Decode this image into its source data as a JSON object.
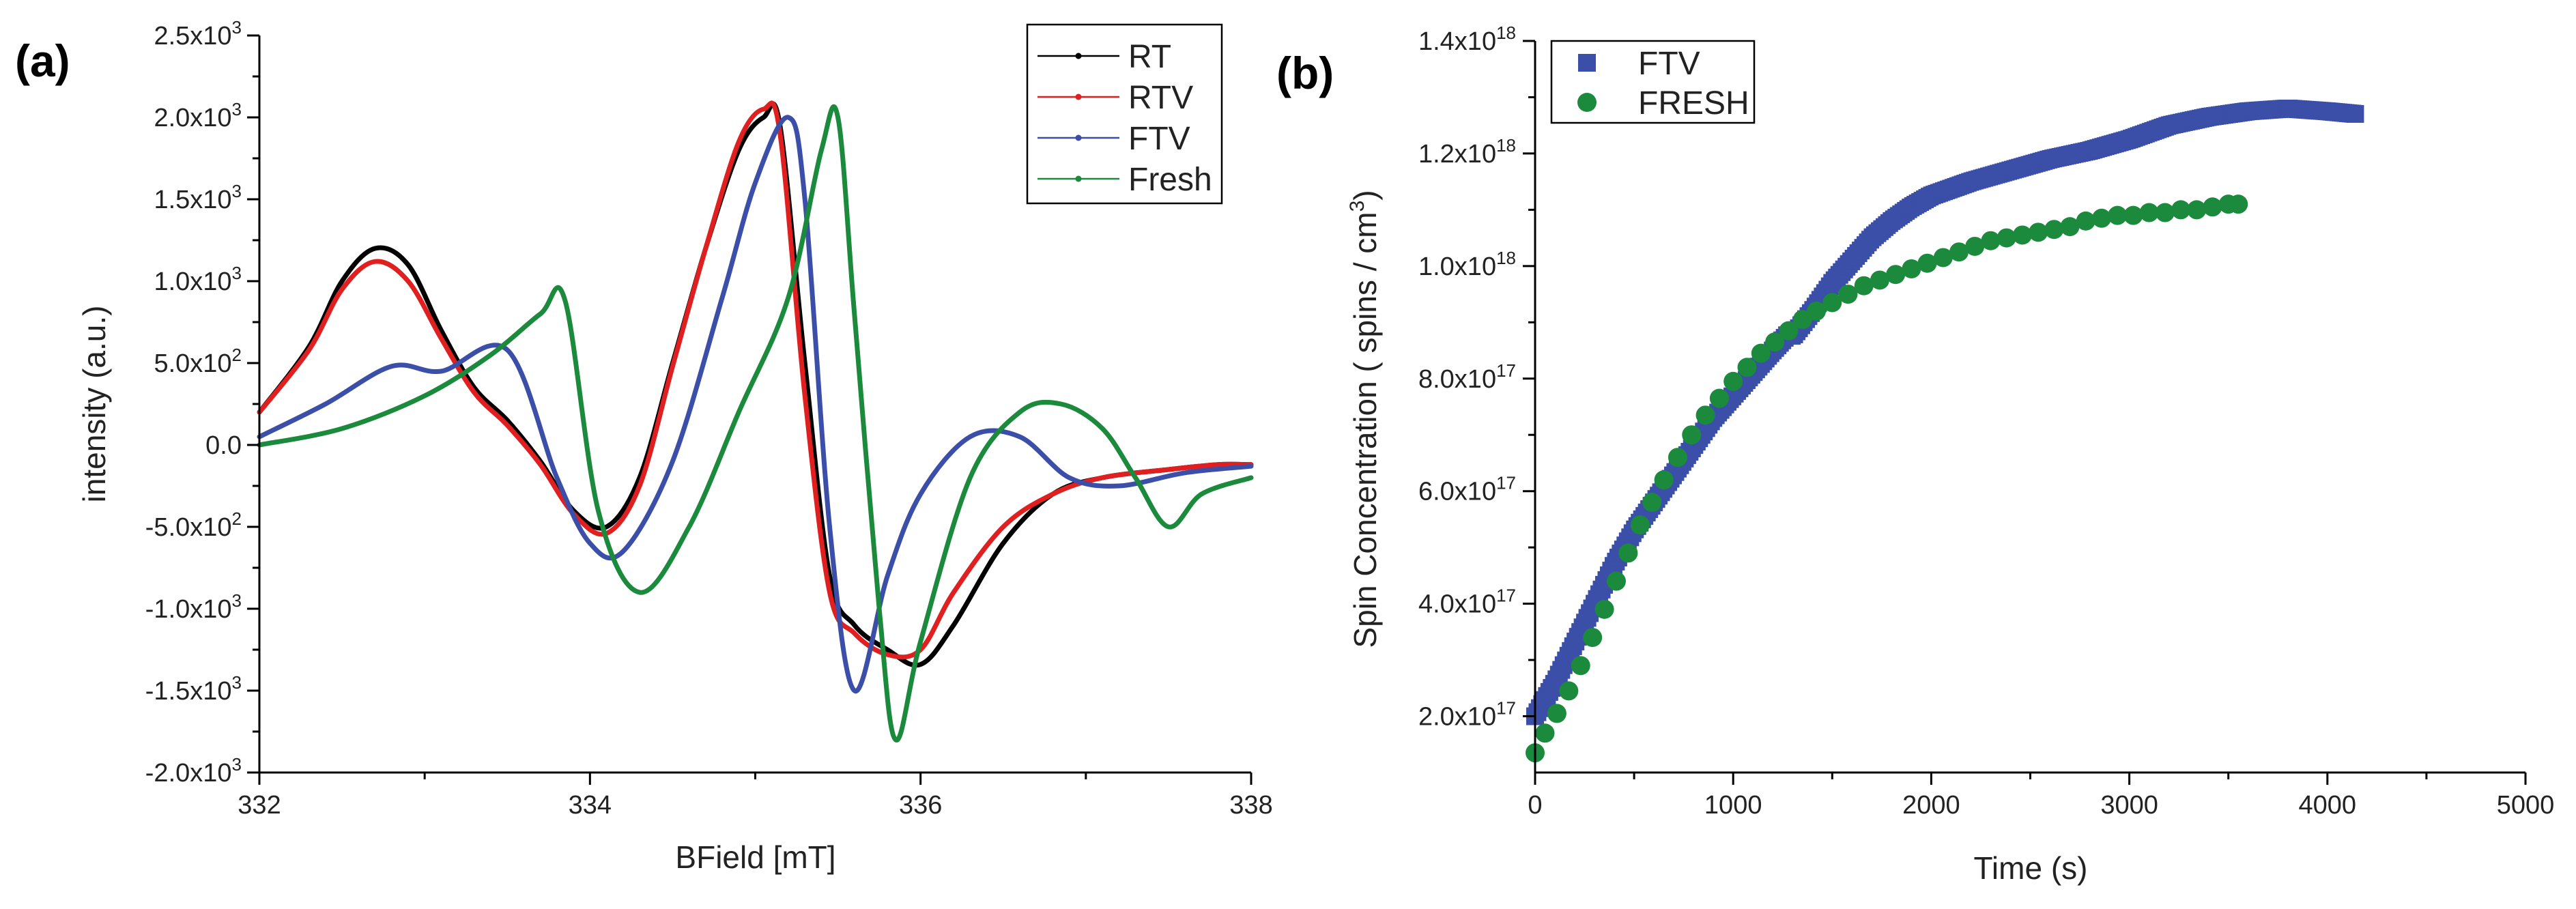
{
  "chart_data": [
    {
      "panel_label": "(a)",
      "type": "line",
      "xlabel": "BField [mT]",
      "ylabel": "intensity (a.u.)",
      "xlim": [
        332,
        338
      ],
      "ylim": [
        -2000,
        2500
      ],
      "xticks": [
        332,
        334,
        336,
        338
      ],
      "xtick_labels": [
        "332",
        "334",
        "336",
        "338"
      ],
      "yticks": [
        2500,
        2000,
        1500,
        1000,
        500,
        0,
        -500,
        -1000,
        -1500,
        -2000
      ],
      "ytick_labels": [
        {
          "m": "2.5x10",
          "e": "3"
        },
        {
          "m": "2.0x10",
          "e": "3"
        },
        {
          "m": "1.5x10",
          "e": "3"
        },
        {
          "m": "1.0x10",
          "e": "3"
        },
        {
          "m": "5.0x10",
          "e": "2"
        },
        {
          "m": "0.0",
          "e": ""
        },
        {
          "m": "-5.0x10",
          "e": "2"
        },
        {
          "m": "-1.0x10",
          "e": "3"
        },
        {
          "m": "-1.5x10",
          "e": "3"
        },
        {
          "m": "-2.0x10",
          "e": "3"
        }
      ],
      "legend_position": "top-right",
      "series": [
        {
          "name": "RT",
          "color": "#000000",
          "x": [
            332.0,
            332.3,
            332.5,
            332.7,
            332.9,
            333.1,
            333.3,
            333.5,
            333.7,
            333.9,
            334.1,
            334.3,
            334.5,
            334.7,
            334.9,
            335.05,
            335.15,
            335.3,
            335.45,
            335.6,
            335.8,
            336.0,
            336.2,
            336.5,
            336.8,
            337.1,
            337.5,
            337.8,
            338.0
          ],
          "y": [
            200,
            600,
            1000,
            1200,
            1100,
            700,
            350,
            150,
            -100,
            -400,
            -500,
            -200,
            500,
            1200,
            1800,
            2000,
            1950,
            500,
            -800,
            -1100,
            -1250,
            -1340,
            -1100,
            -600,
            -300,
            -200,
            -150,
            -120,
            -120
          ]
        },
        {
          "name": "RTV",
          "color": "#e02020",
          "x": [
            332.0,
            332.3,
            332.5,
            332.7,
            332.9,
            333.1,
            333.3,
            333.5,
            333.7,
            333.9,
            334.1,
            334.3,
            334.5,
            334.7,
            334.9,
            335.05,
            335.15,
            335.3,
            335.45,
            335.6,
            335.8,
            336.0,
            336.2,
            336.5,
            336.8,
            337.1,
            337.5,
            337.8,
            338.0
          ],
          "y": [
            200,
            580,
            950,
            1120,
            1000,
            650,
            320,
            120,
            -120,
            -420,
            -540,
            -250,
            480,
            1200,
            1850,
            2050,
            1900,
            300,
            -900,
            -1150,
            -1280,
            -1250,
            -900,
            -500,
            -300,
            -200,
            -150,
            -120,
            -120
          ]
        },
        {
          "name": "FTV",
          "color": "#3b4fa8",
          "x": [
            332.0,
            332.4,
            332.8,
            333.1,
            333.5,
            333.8,
            334.0,
            334.2,
            334.5,
            334.8,
            335.0,
            335.2,
            335.3,
            335.45,
            335.6,
            335.8,
            336.0,
            336.3,
            336.6,
            336.9,
            337.2,
            337.6,
            338.0
          ],
          "y": [
            50,
            250,
            480,
            450,
            580,
            -200,
            -600,
            -650,
            -100,
            900,
            1600,
            2000,
            1500,
            -500,
            -1500,
            -800,
            -300,
            50,
            50,
            -200,
            -250,
            -170,
            -130
          ]
        },
        {
          "name": "Fresh",
          "color": "#1b8a3c",
          "x": [
            332.0,
            332.5,
            333.0,
            333.4,
            333.7,
            333.85,
            334.05,
            334.3,
            334.6,
            334.9,
            335.2,
            335.4,
            335.5,
            335.6,
            335.75,
            335.85,
            336.0,
            336.3,
            336.6,
            336.85,
            337.1,
            337.3,
            337.5,
            337.7,
            338.0
          ],
          "y": [
            0,
            100,
            300,
            550,
            800,
            880,
            -400,
            -900,
            -500,
            200,
            900,
            1800,
            2000,
            800,
            -1000,
            -1800,
            -1200,
            -200,
            200,
            250,
            100,
            -200,
            -500,
            -300,
            -200
          ]
        }
      ]
    },
    {
      "panel_label": "(b)",
      "type": "scatter",
      "xlabel": "Time (s)",
      "ylabel": "Spin Concentration ( spins / cm",
      "ylabel_sup": "3",
      "ylabel_tail": ")",
      "xlim": [
        0,
        5000
      ],
      "ylim": [
        1e+17,
        1.4e+18
      ],
      "xticks": [
        0,
        1000,
        2000,
        3000,
        4000,
        5000
      ],
      "xtick_labels": [
        "0",
        "1000",
        "2000",
        "3000",
        "4000",
        "5000"
      ],
      "yticks": [
        1.4e+18,
        1.2e+18,
        1e+18,
        8e+17,
        6e+17,
        4e+17,
        2e+17
      ],
      "ytick_labels": [
        {
          "m": "1.4x10",
          "e": "18"
        },
        {
          "m": "1.2x10",
          "e": "18"
        },
        {
          "m": "1.0x10",
          "e": "18"
        },
        {
          "m": "8.0x10",
          "e": "17"
        },
        {
          "m": "6.0x10",
          "e": "17"
        },
        {
          "m": "4.0x10",
          "e": "17"
        },
        {
          "m": "2.0x10",
          "e": "17"
        }
      ],
      "legend_position": "top-left",
      "series": [
        {
          "name": "FTV",
          "color": "#3b4fa8",
          "marker": "square",
          "x": [
            0,
            100,
            200,
            300,
            400,
            500,
            600,
            700,
            800,
            900,
            1000,
            1100,
            1200,
            1280,
            1300,
            1400,
            1500,
            1600,
            1700,
            1800,
            1900,
            2000,
            2200,
            2400,
            2600,
            2800,
            3000,
            3200,
            3400,
            3600,
            3800,
            4000,
            4150
          ],
          "y": [
            2e+17,
            2.6e+17,
            3.3e+17,
            4e+17,
            4.7e+17,
            5.3e+17,
            5.8e+17,
            6.3e+17,
            6.8e+17,
            7.3e+17,
            7.7e+17,
            8.1e+17,
            8.5e+17,
            8.8e+17,
            8.75e+17,
            9.2e+17,
            9.7e+17,
            1.01e+18,
            1.05e+18,
            1.08e+18,
            1.105e+18,
            1.125e+18,
            1.15e+18,
            1.17e+18,
            1.19e+18,
            1.205e+18,
            1.225e+18,
            1.25e+18,
            1.265e+18,
            1.275e+18,
            1.28e+18,
            1.275e+18,
            1.27e+18
          ]
        },
        {
          "name": "FRESH",
          "color": "#1b8a3c",
          "marker": "circle",
          "x": [
            0,
            50,
            110,
            170,
            230,
            290,
            350,
            410,
            470,
            530,
            590,
            650,
            720,
            790,
            860,
            930,
            1000,
            1070,
            1140,
            1210,
            1280,
            1350,
            1420,
            1500,
            1580,
            1660,
            1740,
            1820,
            1900,
            1980,
            2060,
            2140,
            2220,
            2300,
            2380,
            2460,
            2540,
            2620,
            2700,
            2780,
            2860,
            2940,
            3020,
            3100,
            3180,
            3260,
            3340,
            3420,
            3500,
            3550
          ],
          "y": [
            1.35e+17,
            1.7e+17,
            2.05e+17,
            2.45e+17,
            2.9e+17,
            3.4e+17,
            3.9e+17,
            4.4e+17,
            4.9e+17,
            5.4e+17,
            5.8e+17,
            6.2e+17,
            6.6e+17,
            7e+17,
            7.35e+17,
            7.65e+17,
            7.95e+17,
            8.2e+17,
            8.45e+17,
            8.65e+17,
            8.85e+17,
            9.05e+17,
            9.2e+17,
            9.35e+17,
            9.5e+17,
            9.65e+17,
            9.75e+17,
            9.85e+17,
            9.95e+17,
            1.005e+18,
            1.015e+18,
            1.025e+18,
            1.035e+18,
            1.045e+18,
            1.05e+18,
            1.055e+18,
            1.06e+18,
            1.065e+18,
            1.07e+18,
            1.08e+18,
            1.085e+18,
            1.09e+18,
            1.09e+18,
            1.095e+18,
            1.095e+18,
            1.1e+18,
            1.1e+18,
            1.105e+18,
            1.11e+18,
            1.11e+18
          ]
        }
      ]
    }
  ]
}
